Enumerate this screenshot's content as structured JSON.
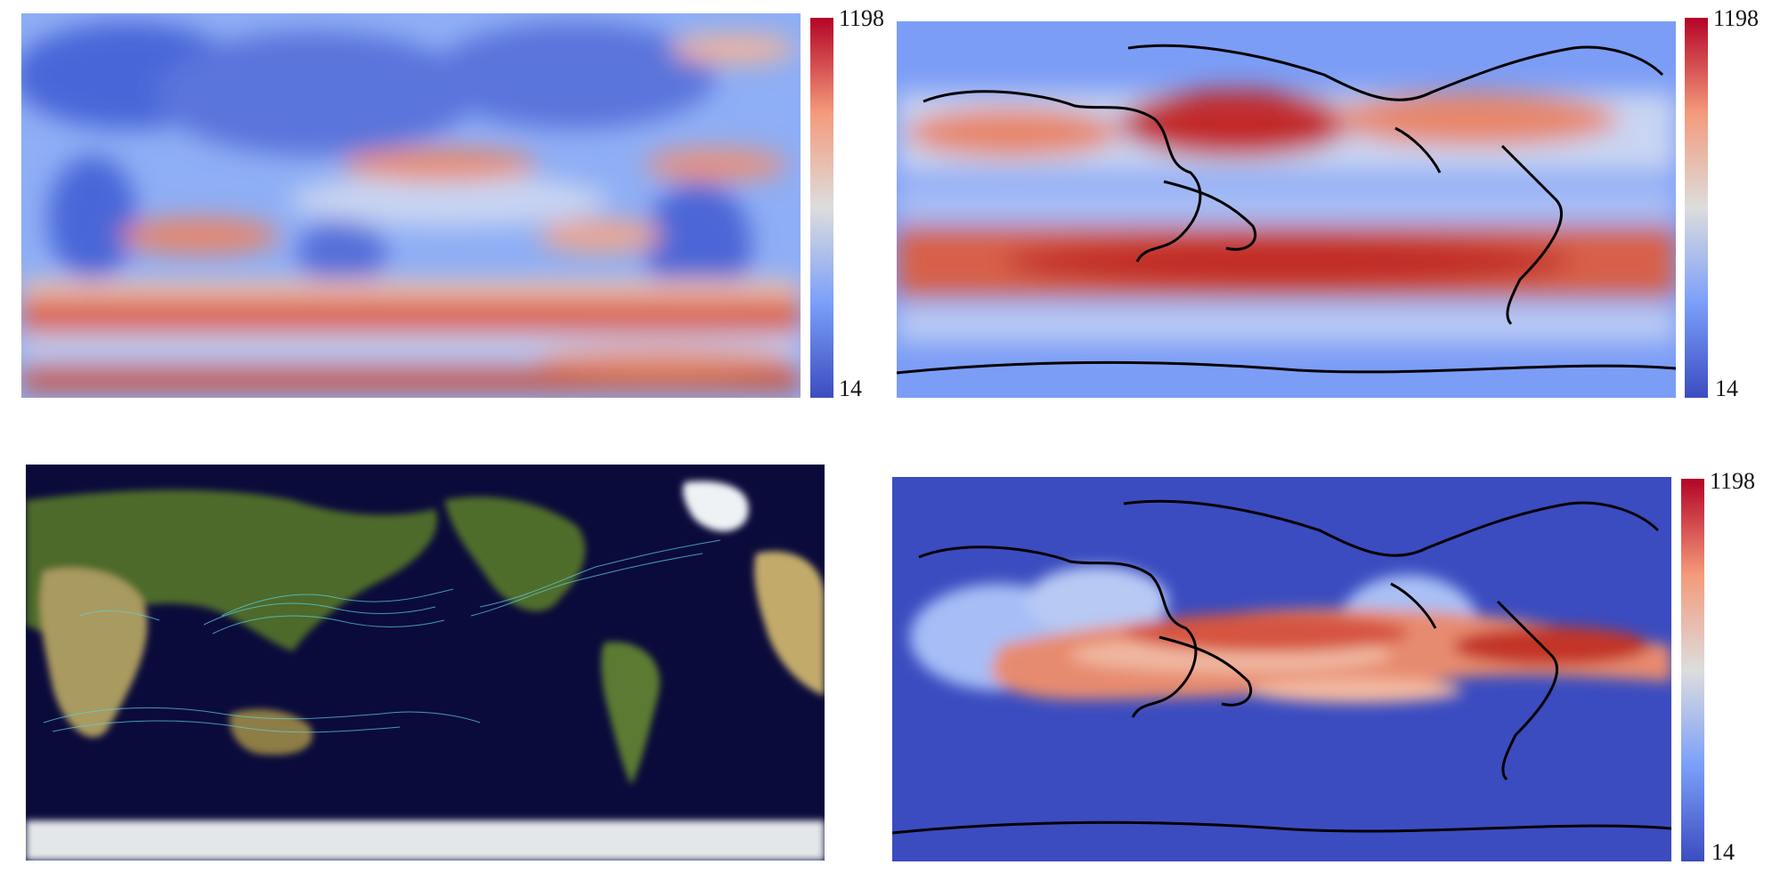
{
  "colorbars": [
    {
      "max_label": "1198",
      "min_label": "14"
    },
    {
      "max_label": "1198",
      "min_label": "14"
    },
    {
      "max_label": "1198",
      "min_label": "14"
    }
  ],
  "colors": {
    "cool": "#3b4cc0",
    "mid": "#dddddd",
    "warm": "#b40426",
    "ocean_dark": "#0b0b3b",
    "land_green": "#4e6a2a",
    "land_tan": "#b7a06a",
    "ice": "#e6ebf0",
    "track": "#5fd4e8"
  },
  "panels": [
    {
      "id": "top-left",
      "content": "model output density field"
    },
    {
      "id": "top-right",
      "content": "smoothed density field with coastlines"
    },
    {
      "id": "bottom-left",
      "content": "observed tropical cyclone tracks on satellite map"
    },
    {
      "id": "bottom-right",
      "content": "density field with coastlines"
    }
  ]
}
